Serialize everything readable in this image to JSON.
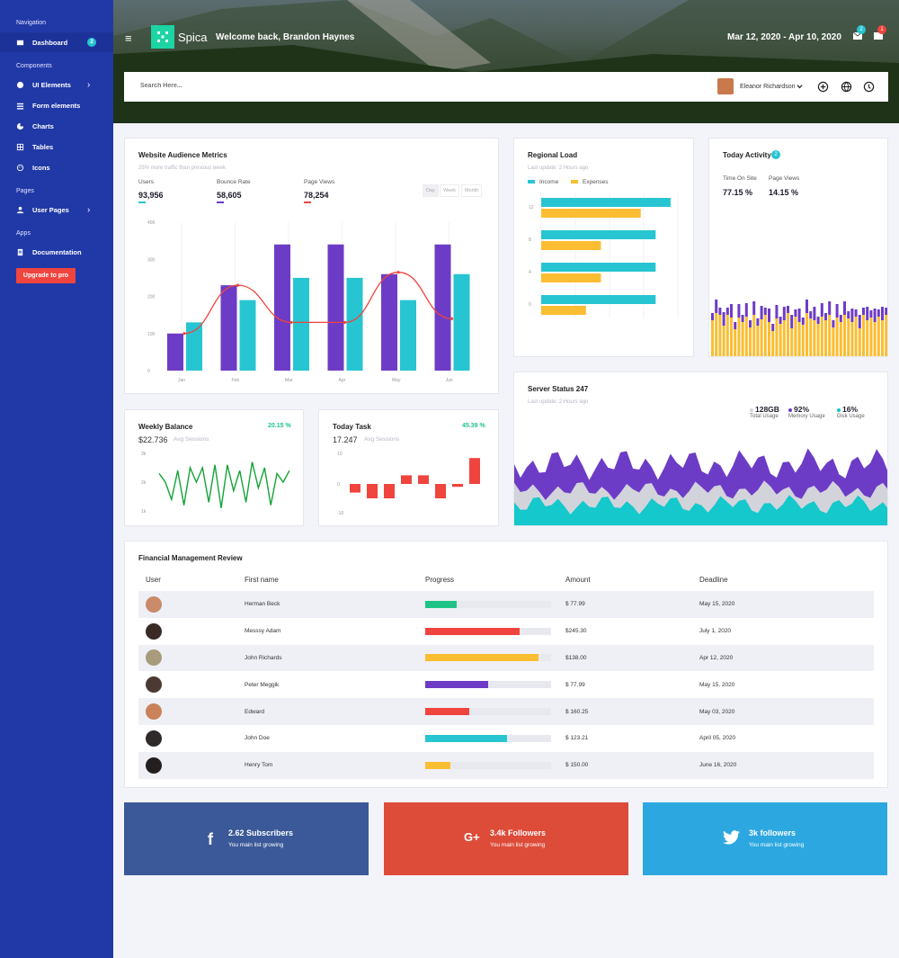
{
  "sidebar": {
    "sections": {
      "navigation": "Navigation",
      "components": "Components",
      "pages": "Pages",
      "apps": "Apps"
    },
    "items": [
      {
        "label": "Dashboard",
        "badge": "2"
      },
      {
        "label": "UI Elements"
      },
      {
        "label": "Form elements"
      },
      {
        "label": "Charts"
      },
      {
        "label": "Tables"
      },
      {
        "label": "Icons"
      },
      {
        "label": "User Pages"
      },
      {
        "label": "Documentation"
      }
    ],
    "upgrade": "Upgrade to pro"
  },
  "header": {
    "brand": "Spica",
    "welcome": "Welcome back, Brandon Haynes",
    "date_range": "Mar 12, 2020 - Apr 10, 2020",
    "mail_badge": "2",
    "bell_badge": "1"
  },
  "search": {
    "placeholder": "Search Here...",
    "user_name": "Eleanor Richardson"
  },
  "audience": {
    "title": "Website Audience Metrics",
    "subtitle": "25% more traffic than previous week",
    "metrics": [
      {
        "label": "Users",
        "value": "93,956",
        "color": "#27c5d1"
      },
      {
        "label": "Bounce Rate",
        "value": "58,605",
        "color": "#6d3cc6"
      },
      {
        "label": "Page Views",
        "value": "78,254",
        "color": "#f0443e"
      }
    ],
    "periods": [
      "Day",
      "Week",
      "Month"
    ]
  },
  "regional": {
    "title": "Regional Load",
    "subtitle": "Last update: 2 Hours ago",
    "legend": [
      "Income",
      "Expenses"
    ]
  },
  "activity": {
    "title": "Today Activity",
    "badge": "2",
    "metrics": [
      {
        "label": "Time On Site",
        "value": "77.15 %"
      },
      {
        "label": "Page Views",
        "value": "14.15 %"
      }
    ]
  },
  "server": {
    "title": "Server Status 247",
    "subtitle": "Last update: 2 Hours ago",
    "stats": [
      {
        "value": "128GB",
        "label": "Total Usage",
        "color": "#d3d4db"
      },
      {
        "value": "92%",
        "label": "Memory Usage",
        "color": "#6d3cc6"
      },
      {
        "value": "16%",
        "label": "Disk Usage",
        "color": "#14c8cc"
      }
    ]
  },
  "weekly": {
    "title": "Weekly Balance",
    "pct": "20.15 %",
    "value": "$22.736",
    "sub": "Avg Sessions"
  },
  "task": {
    "title": "Today Task",
    "pct": "45.39 %",
    "value": "17.247",
    "sub": "Avg Sessions"
  },
  "finance": {
    "title": "Financial Management Review",
    "columns": [
      "User",
      "First name",
      "Progress",
      "Amount",
      "Deadline"
    ],
    "rows": [
      {
        "name": "Herman Beck",
        "progress": 0.25,
        "color": "#1ec487",
        "amount": "$ 77.99",
        "deadline": "May 15, 2020",
        "avatar": "#c98b6a"
      },
      {
        "name": "Messsy Adam",
        "progress": 0.75,
        "color": "#f0443e",
        "amount": "$245.30",
        "deadline": "July 1, 2020",
        "avatar": "#3a2a25"
      },
      {
        "name": "John Richards",
        "progress": 0.9,
        "color": "#fbbd32",
        "amount": "$138.00",
        "deadline": "Apr 12, 2020",
        "avatar": "#a99c7c"
      },
      {
        "name": "Peter Meggik",
        "progress": 0.5,
        "color": "#6d3cc6",
        "amount": "$ 77.99",
        "deadline": "May 15, 2020",
        "avatar": "#4a3a33"
      },
      {
        "name": "Edward",
        "progress": 0.35,
        "color": "#f0443e",
        "amount": "$ 160.25",
        "deadline": "May 03, 2020",
        "avatar": "#c9825a"
      },
      {
        "name": "John Doe",
        "progress": 0.65,
        "color": "#27c5d1",
        "amount": "$ 123.21",
        "deadline": "April 05, 2020",
        "avatar": "#2e2a2a"
      },
      {
        "name": "Henry Tom",
        "progress": 0.2,
        "color": "#fbbd32",
        "amount": "$ 150.00",
        "deadline": "June 16, 2020",
        "avatar": "#241f1f"
      }
    ]
  },
  "social": [
    {
      "title": "2.62 Subscribers",
      "sub": "You main list growing",
      "icon": "f",
      "color": "#3b5998"
    },
    {
      "title": "3.4k Followers",
      "sub": "You main list growing",
      "icon": "G+",
      "color": "#dd4b39"
    },
    {
      "title": "3k followers",
      "sub": "You main list growing",
      "icon": "twitter",
      "color": "#2ca7e0"
    }
  ],
  "chart_data": [
    {
      "type": "bar",
      "id": "audience",
      "categories": [
        "Jan",
        "Feb",
        "Mar",
        "Apr",
        "May",
        "Jun"
      ],
      "series": [
        {
          "values": [
            100,
            230,
            340,
            340,
            260,
            340
          ],
          "color": "#6d3cc6"
        },
        {
          "values": [
            130,
            190,
            250,
            250,
            190,
            260
          ],
          "color": "#27c5d1"
        },
        {
          "type": "line",
          "values": [
            100,
            230,
            130,
            130,
            265,
            140
          ],
          "color": "#f0443e"
        }
      ],
      "ylim": [
        0,
        400
      ],
      "yticks": [
        0,
        100,
        200,
        300,
        400
      ]
    },
    {
      "type": "bar",
      "id": "regional",
      "orientation": "horizontal",
      "categories": [
        "12",
        "8",
        "4",
        "0"
      ],
      "series": [
        {
          "name": "Income",
          "values": [
            13,
            11.5,
            11.5,
            11.5
          ],
          "color": "#27c5d1"
        },
        {
          "name": "Expenses",
          "values": [
            10,
            6,
            6,
            4.5
          ],
          "color": "#fbbd32"
        }
      ],
      "xlim": [
        0,
        14
      ]
    },
    {
      "type": "line",
      "id": "weekly",
      "yticks": [
        "3k",
        "2k",
        "1k"
      ],
      "values": [
        2.3,
        2.0,
        1.4,
        2.4,
        1.2,
        2.5,
        2.0,
        2.5,
        1.3,
        2.6,
        1.1,
        2.6,
        1.7,
        2.4,
        1.3,
        2.7,
        1.8,
        2.5,
        1.2,
        2.3,
        2.0,
        2.4
      ],
      "ylim": [
        1,
        3
      ],
      "color": "#13a336"
    },
    {
      "type": "bar",
      "id": "task",
      "yticks": [
        10,
        0,
        -10
      ],
      "values": [
        -3,
        -5,
        -5,
        3,
        3,
        -5,
        -1,
        9
      ],
      "ylim": [
        -10,
        10
      ],
      "color": "#f0443e"
    }
  ]
}
